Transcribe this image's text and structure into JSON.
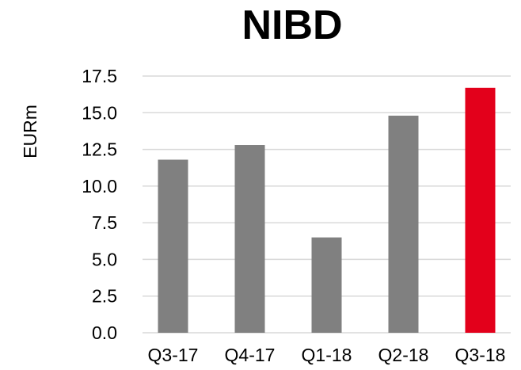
{
  "chart_data": {
    "type": "bar",
    "title": "NIBD",
    "xlabel": "",
    "ylabel": "EURm",
    "categories": [
      "Q3-17",
      "Q4-17",
      "Q1-18",
      "Q2-18",
      "Q3-18"
    ],
    "values": [
      11.8,
      12.8,
      6.5,
      14.8,
      16.7
    ],
    "ylim": [
      0,
      17.5
    ],
    "yticks": [
      "0.0",
      "2.5",
      "5.0",
      "7.5",
      "10.0",
      "12.5",
      "15.0",
      "17.5"
    ],
    "grid": true,
    "colors": {
      "default_bar": "#808080",
      "highlight_bar": "#e3001b",
      "gridline": "#d9d9d9"
    },
    "highlight_index": 4
  }
}
